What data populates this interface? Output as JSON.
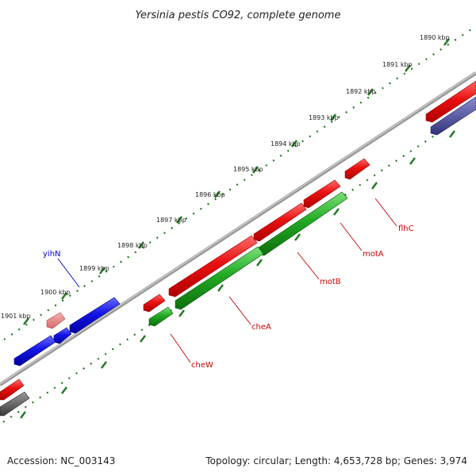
{
  "title": "Yersinia pestis CO92, complete genome",
  "footer": {
    "accession": "Accession: NC_003143",
    "summary": "Topology: circular; Length: 4,653,728 bp; Genes: 3,974"
  },
  "ticks": [
    "1890 kbp",
    "1891 kbp",
    "1892 kbp",
    "1893 kbp",
    "1894 kbp",
    "1895 kbp",
    "1896 kbp",
    "1897 kbp",
    "1898 kbp",
    "1899 kbp",
    "1900 kbp",
    "1901 kbp"
  ],
  "colors": {
    "backbone": "#8a8a8a",
    "tick_dots": "#1f7a1f",
    "forward_gene": "#e01010",
    "reverse_gene": "#1a9e1a",
    "other_gene_blue": "#1010e0",
    "other_gene_pink": "#e88080",
    "other_gene_purple": "#4a4a9a",
    "other_gene_grey": "#555555",
    "forward_label": "#cc0000",
    "other_label": "#0000cc"
  },
  "genes": [
    {
      "name": "flhC",
      "color": "red"
    },
    {
      "name": "motA",
      "color": "red"
    },
    {
      "name": "motB",
      "color": "red"
    },
    {
      "name": "cheA",
      "color": "red"
    },
    {
      "name": "cheW",
      "color": "red"
    },
    {
      "name": "yihN",
      "color": "blue"
    }
  ]
}
